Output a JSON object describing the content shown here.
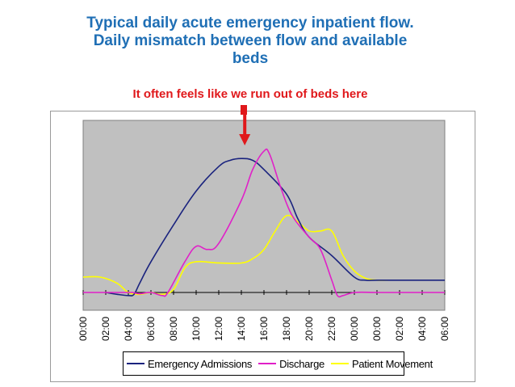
{
  "title": {
    "line1": "Typical daily acute emergency inpatient  flow.",
    "line2": "Daily  mismatch  between flow and available",
    "line3": "beds"
  },
  "annotation": {
    "text": "It often feels like we run out of beds here",
    "arrow_at_x": 14.3,
    "color": "#e0181b"
  },
  "colors": {
    "title": "#1f6fb5",
    "plot_background": "#c0c0c0"
  },
  "chart_data": {
    "type": "line",
    "x_tick_labels": [
      "00:00",
      "02:00",
      "04:00",
      "06:00",
      "08:00",
      "10:00",
      "12:00",
      "14:00",
      "16:00",
      "18:00",
      "20:00",
      "22:00",
      "00:00",
      "00:00",
      "02:00",
      "04:00",
      "06:00"
    ],
    "xlim": [
      0,
      32
    ],
    "ylim": [
      -3,
      28
    ],
    "grid": false,
    "legend_position": "bottom",
    "series": [
      {
        "name": "Emergency Admissions",
        "color": "#1a237e",
        "points": [
          [
            2,
            0
          ],
          [
            3,
            -0.3
          ],
          [
            4,
            -0.5
          ],
          [
            4.5,
            -0.3
          ],
          [
            5,
            1.5
          ],
          [
            6,
            5
          ],
          [
            8,
            11
          ],
          [
            10,
            16.5
          ],
          [
            12,
            20.5
          ],
          [
            13,
            21.5
          ],
          [
            14,
            21.8
          ],
          [
            15,
            21.5
          ],
          [
            16,
            20
          ],
          [
            18,
            16
          ],
          [
            19,
            12
          ],
          [
            20,
            9
          ],
          [
            22,
            6
          ],
          [
            24,
            2.5
          ],
          [
            25,
            2
          ],
          [
            26,
            2
          ],
          [
            28,
            2
          ],
          [
            30,
            2
          ],
          [
            32,
            2
          ]
        ]
      },
      {
        "name": "Discharge",
        "color": "#e020c8",
        "points": [
          [
            0,
            0
          ],
          [
            2,
            0
          ],
          [
            4,
            0
          ],
          [
            4.4,
            0
          ],
          [
            5,
            -0.2
          ],
          [
            6,
            0
          ],
          [
            7,
            -0.5
          ],
          [
            7.5,
            0
          ],
          [
            9,
            5
          ],
          [
            10,
            7.5
          ],
          [
            11,
            7
          ],
          [
            12,
            8
          ],
          [
            14,
            15
          ],
          [
            15,
            20
          ],
          [
            16,
            23
          ],
          [
            16.5,
            22.5
          ],
          [
            17.5,
            17
          ],
          [
            18.5,
            12.5
          ],
          [
            20,
            9
          ],
          [
            21,
            7
          ],
          [
            22,
            2
          ],
          [
            22.5,
            -0.5
          ],
          [
            23,
            -0.5
          ],
          [
            24,
            0
          ],
          [
            26,
            0
          ],
          [
            28,
            0
          ],
          [
            30,
            0
          ],
          [
            32,
            0
          ]
        ]
      },
      {
        "name": "Patient Movement",
        "color": "#ffff00",
        "points": [
          [
            0,
            2.5
          ],
          [
            1.5,
            2.5
          ],
          [
            3,
            1.5
          ],
          [
            4,
            0
          ],
          [
            5,
            -0.3
          ],
          [
            6,
            0
          ],
          [
            7,
            -0.3
          ],
          [
            8,
            0.5
          ],
          [
            9,
            4
          ],
          [
            10,
            5
          ],
          [
            12,
            4.8
          ],
          [
            14,
            4.8
          ],
          [
            15,
            5.5
          ],
          [
            16,
            7
          ],
          [
            17,
            10
          ],
          [
            18,
            12.5
          ],
          [
            19,
            11.5
          ],
          [
            20,
            10
          ],
          [
            21,
            10
          ],
          [
            22,
            10
          ],
          [
            23,
            6
          ],
          [
            24,
            3.5
          ],
          [
            25,
            2.3
          ],
          [
            26,
            2
          ],
          [
            27,
            2
          ]
        ]
      }
    ]
  }
}
